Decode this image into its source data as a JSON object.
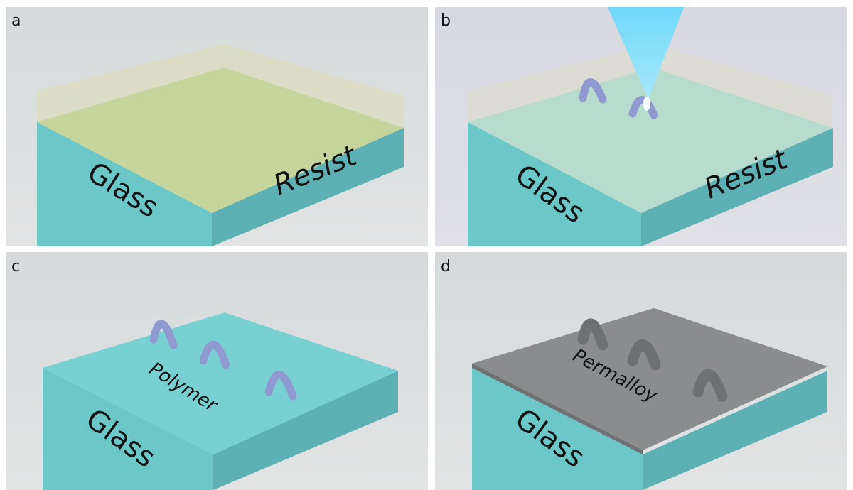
{
  "panels": [
    {
      "label": "a",
      "texts": [
        "Glass",
        "Resist"
      ]
    },
    {
      "label": "b",
      "texts": [
        "Glass",
        "Resist"
      ]
    },
    {
      "label": "c",
      "texts": [
        "Polymer",
        "Glass"
      ]
    },
    {
      "label": "d",
      "texts": [
        "Permalloy",
        "Glass"
      ]
    }
  ]
}
